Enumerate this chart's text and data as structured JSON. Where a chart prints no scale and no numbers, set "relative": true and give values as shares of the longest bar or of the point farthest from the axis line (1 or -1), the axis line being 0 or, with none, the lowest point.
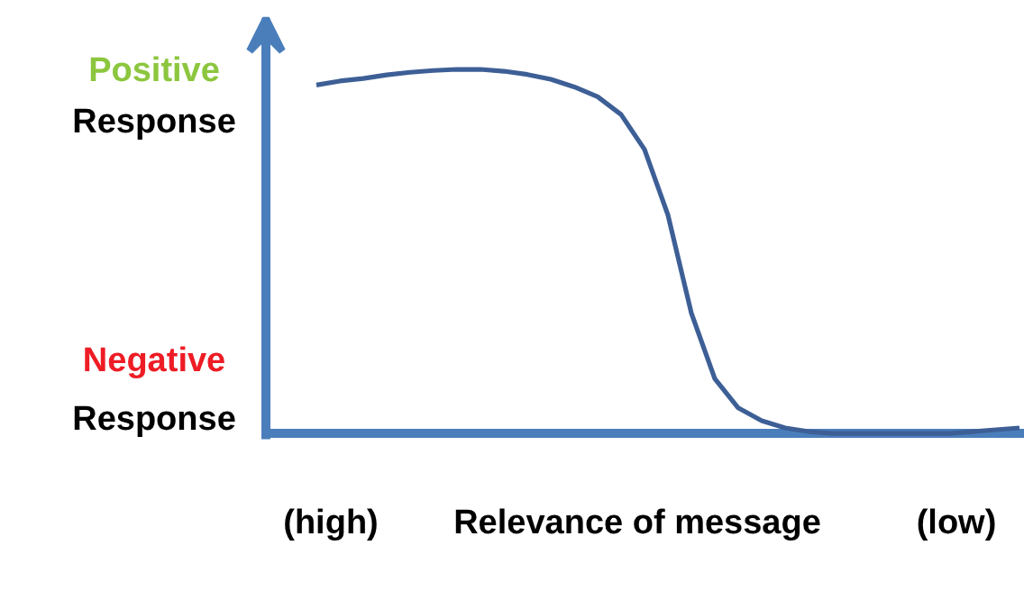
{
  "chart_data": {
    "type": "line",
    "relative": true,
    "xlabel": "Relevance of message",
    "annotations": [
      "Positive Response",
      "Negative Response",
      "(high)",
      "(low)"
    ],
    "categories": [
      null,
      null,
      null,
      null,
      null,
      null,
      null,
      null,
      null,
      null,
      null,
      null,
      null,
      null,
      null,
      null,
      null,
      null,
      null,
      null,
      null,
      null,
      null,
      null,
      null,
      null,
      null,
      null,
      null,
      null,
      null
    ],
    "series": [
      {
        "color": "#3d5f96",
        "values": [
          0.957,
          0.968,
          0.975,
          0.985,
          0.992,
          0.997,
          1,
          1,
          0.995,
          0.986,
          0.973,
          0.952,
          0.925,
          0.876,
          0.78,
          0.6,
          0.33,
          0.15,
          0.07,
          0.035,
          0.015,
          0.005,
          0,
          0,
          0,
          0,
          0,
          0,
          0.005,
          0.01,
          0.015
        ]
      }
    ],
    "grid": false,
    "marker": "none",
    "line_style": "solid"
  }
}
